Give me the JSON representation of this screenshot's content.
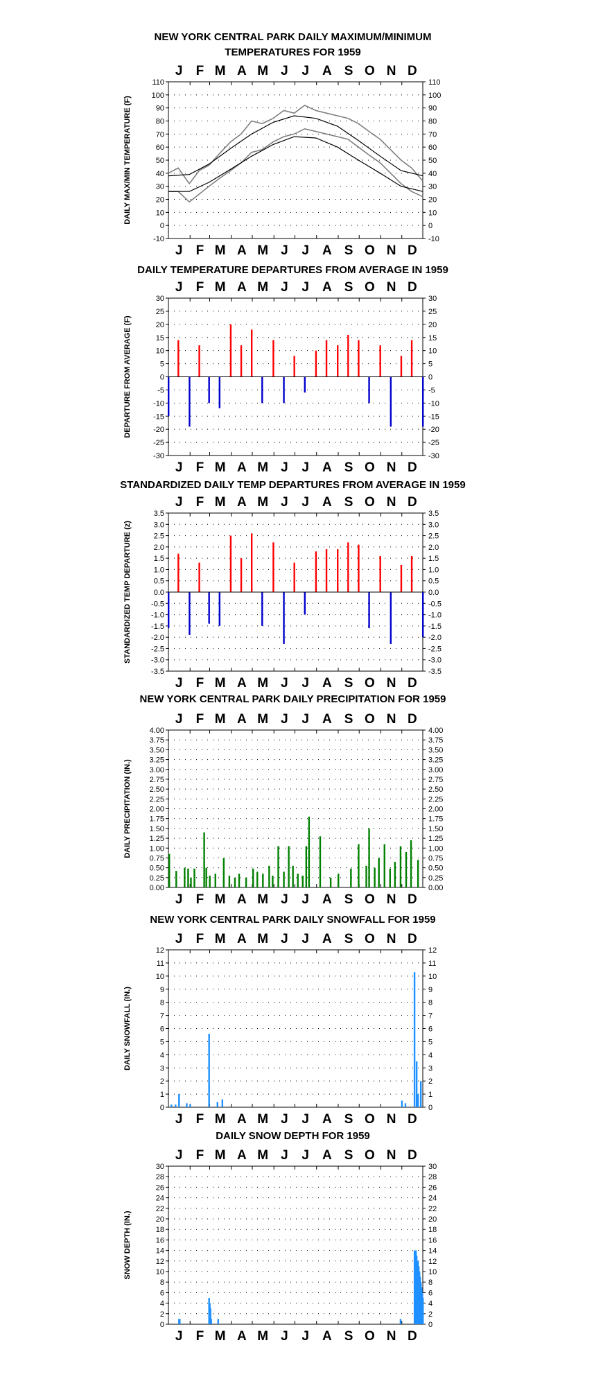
{
  "months": [
    "J",
    "F",
    "M",
    "A",
    "M",
    "J",
    "J",
    "A",
    "S",
    "O",
    "N",
    "D"
  ],
  "colors": {
    "max": "#7f7f7f",
    "normal": "#000000",
    "warm": "#ff0000",
    "cold": "#0000cc",
    "precip": "#008000",
    "snow": "#1e90ff"
  },
  "chart_data": [
    {
      "type": "line",
      "title": [
        "NEW YORK CENTRAL PARK DAILY MAXIMUM/MINIMUM",
        "TEMPERATURES FOR 1959"
      ],
      "ylabel": "DAILY MAX/MIN TEMPERATURE (F)",
      "ylim": [
        -10,
        110
      ],
      "yticks": [
        -10,
        0,
        10,
        20,
        30,
        40,
        50,
        60,
        70,
        80,
        90,
        100,
        110
      ],
      "grid": "dotted",
      "series": [
        {
          "role": "daily-max",
          "x": [
            1,
            15,
            31,
            45,
            59,
            74,
            90,
            105,
            120,
            135,
            151,
            166,
            181,
            196,
            212,
            227,
            243,
            258,
            273,
            288,
            304,
            319,
            334,
            349,
            365
          ],
          "values": [
            40,
            44,
            32,
            42,
            46,
            55,
            64,
            70,
            80,
            78,
            82,
            88,
            86,
            92,
            88,
            86,
            84,
            82,
            78,
            72,
            66,
            58,
            50,
            44,
            34
          ]
        },
        {
          "role": "daily-min",
          "x": [
            1,
            15,
            31,
            45,
            59,
            74,
            90,
            105,
            120,
            135,
            151,
            166,
            181,
            196,
            212,
            227,
            243,
            258,
            273,
            288,
            304,
            319,
            334,
            349,
            365
          ],
          "values": [
            26,
            26,
            18,
            24,
            30,
            36,
            42,
            48,
            56,
            58,
            64,
            68,
            70,
            74,
            72,
            70,
            68,
            66,
            60,
            54,
            48,
            40,
            32,
            26,
            22
          ]
        },
        {
          "role": "normal-max",
          "x": [
            1,
            31,
            59,
            90,
            120,
            151,
            181,
            212,
            243,
            273,
            304,
            334,
            365
          ],
          "values": [
            38,
            39,
            47,
            59,
            70,
            79,
            84,
            82,
            76,
            65,
            53,
            42,
            38
          ]
        },
        {
          "role": "normal-min",
          "x": [
            1,
            31,
            59,
            90,
            120,
            151,
            181,
            212,
            243,
            273,
            304,
            334,
            365
          ],
          "values": [
            26,
            26,
            33,
            43,
            53,
            62,
            68,
            67,
            60,
            50,
            40,
            30,
            26
          ]
        }
      ]
    },
    {
      "type": "bar",
      "title": [
        "DAILY TEMPERATURE DEPARTURES FROM AVERAGE IN 1959"
      ],
      "ylabel": "DEPARTURE FROM AVERAGE (F)",
      "ylim": [
        -30,
        30
      ],
      "yticks": [
        -30,
        -25,
        -20,
        -15,
        -10,
        -5,
        0,
        5,
        10,
        15,
        20,
        25,
        30
      ],
      "grid": "dotted",
      "x": [
        1,
        15,
        31,
        45,
        59,
        74,
        90,
        105,
        120,
        135,
        151,
        166,
        181,
        196,
        212,
        227,
        243,
        258,
        273,
        288,
        304,
        319,
        334,
        349,
        365
      ],
      "values": [
        -15,
        14,
        -19,
        12,
        -10,
        -12,
        20,
        12,
        18,
        -10,
        14,
        -10,
        8,
        -6,
        10,
        14,
        12,
        16,
        14,
        -10,
        12,
        -19,
        8,
        14,
        -19
      ]
    },
    {
      "type": "bar",
      "title": [
        "STANDARDIZED DAILY TEMP DEPARTURES FROM AVERAGE IN 1959"
      ],
      "ylabel": "STANDARDIZED TEMP DEPARTURE (z)",
      "ylim": [
        -3.5,
        3.5
      ],
      "yticks": [
        -3.5,
        -3.0,
        -2.5,
        -2.0,
        -1.5,
        -1.0,
        -0.5,
        0.0,
        0.5,
        1.0,
        1.5,
        2.0,
        2.5,
        3.0,
        3.5
      ],
      "grid": "dotted",
      "x": [
        1,
        15,
        31,
        45,
        59,
        74,
        90,
        105,
        120,
        135,
        151,
        166,
        181,
        196,
        212,
        227,
        243,
        258,
        273,
        288,
        304,
        319,
        334,
        349,
        365
      ],
      "values": [
        -1.6,
        1.7,
        -1.9,
        1.3,
        -1.4,
        -1.5,
        2.5,
        1.5,
        2.6,
        -1.5,
        2.2,
        -2.3,
        1.3,
        -1.0,
        1.8,
        1.9,
        1.9,
        2.2,
        2.1,
        -1.6,
        1.6,
        -2.3,
        1.2,
        1.6,
        -2.0
      ]
    },
    {
      "type": "bar",
      "title": [
        "NEW YORK CENTRAL PARK DAILY PRECIPITATION FOR 1959"
      ],
      "ylabel": "DAILY PRECIPITATION (IN.)",
      "ylim": [
        0,
        4
      ],
      "yticks": [
        0.0,
        0.25,
        0.5,
        0.75,
        1.0,
        1.25,
        1.5,
        1.75,
        2.0,
        2.25,
        2.5,
        2.75,
        3.0,
        3.25,
        3.5,
        3.75,
        4.0
      ],
      "grid": "dotted",
      "x": [
        2,
        12,
        24,
        29,
        33,
        38,
        52,
        55,
        60,
        68,
        80,
        88,
        96,
        102,
        112,
        122,
        128,
        136,
        145,
        150,
        158,
        166,
        173,
        179,
        186,
        193,
        198,
        202,
        218,
        233,
        244,
        262,
        273,
        284,
        288,
        296,
        302,
        310,
        318,
        325,
        333,
        341,
        348,
        358
      ],
      "values": [
        0.85,
        0.42,
        0.5,
        0.48,
        0.25,
        0.48,
        1.4,
        0.5,
        0.3,
        0.35,
        0.75,
        0.3,
        0.25,
        0.35,
        0.25,
        0.48,
        0.4,
        0.35,
        0.55,
        0.3,
        1.05,
        0.4,
        1.05,
        0.55,
        0.35,
        0.3,
        1.05,
        1.8,
        1.3,
        0.25,
        0.35,
        0.48,
        1.1,
        0.55,
        1.5,
        0.5,
        0.75,
        1.1,
        0.48,
        0.65,
        1.05,
        0.9,
        1.2,
        0.7
      ]
    },
    {
      "type": "bar",
      "title": [
        "NEW YORK CENTRAL PARK DAILY SNOWFALL FOR 1959"
      ],
      "ylabel": "DAILY SNOWFALL (IN.)",
      "ylim": [
        0,
        12
      ],
      "yticks": [
        0,
        1,
        2,
        3,
        4,
        5,
        6,
        7,
        8,
        9,
        10,
        11,
        12
      ],
      "grid": "dotted",
      "x": [
        5,
        11,
        16,
        27,
        32,
        59,
        71,
        78,
        335,
        340,
        353,
        356,
        358,
        362
      ],
      "values": [
        0.2,
        0.2,
        1.0,
        0.3,
        0.2,
        5.6,
        0.4,
        0.6,
        0.5,
        0.3,
        10.3,
        3.5,
        1.0,
        2.0
      ]
    },
    {
      "type": "bar",
      "title": [
        "DAILY SNOW DEPTH FOR 1959"
      ],
      "ylabel": "SNOW DEPTH (IN.)",
      "ylim": [
        0,
        30
      ],
      "yticks": [
        0,
        2,
        4,
        6,
        8,
        10,
        12,
        14,
        16,
        18,
        20,
        22,
        24,
        26,
        28,
        30
      ],
      "grid": "dotted",
      "x": [
        16,
        17,
        59,
        60,
        61,
        62,
        72,
        333,
        353,
        354,
        355,
        356,
        357,
        358,
        359,
        360,
        361,
        362,
        363,
        364,
        365
      ],
      "values": [
        1,
        1,
        5,
        4,
        3,
        1,
        1,
        1,
        14,
        14,
        14,
        13,
        12,
        12,
        11,
        10,
        9,
        8,
        7,
        6,
        5
      ]
    }
  ]
}
